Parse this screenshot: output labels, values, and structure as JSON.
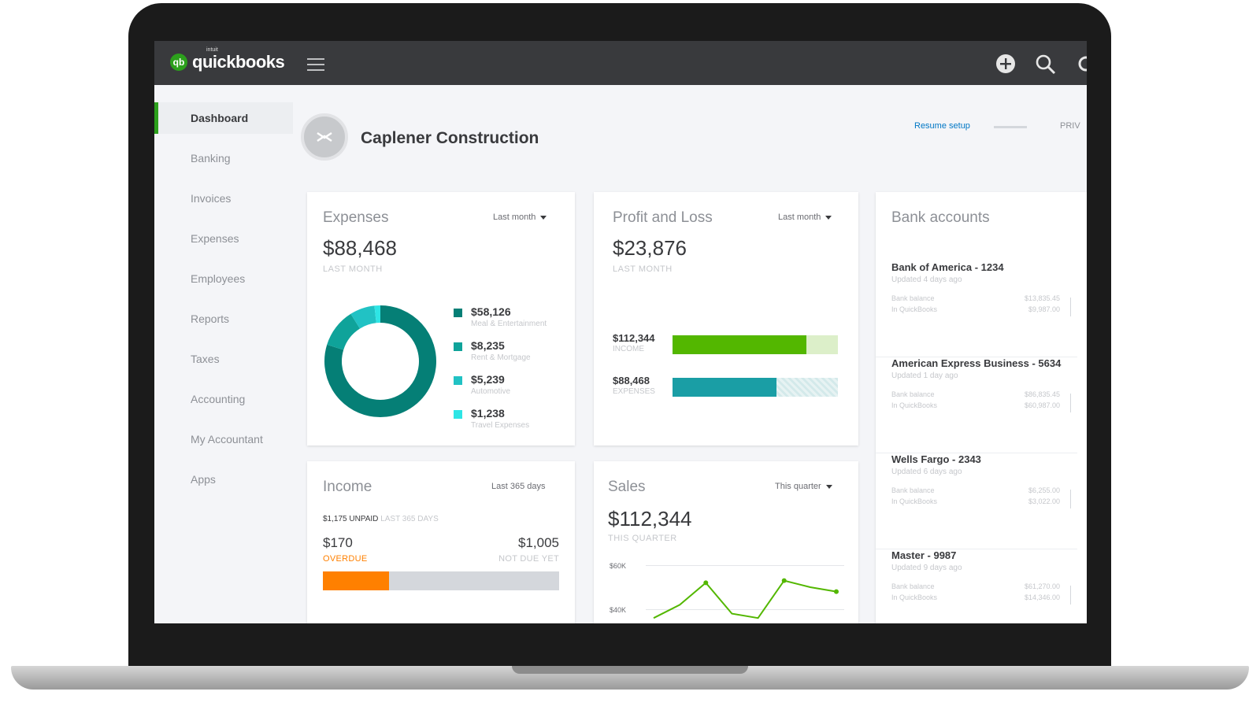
{
  "app": {
    "brand_small": "intuit",
    "brand": "quickbooks",
    "company_name": "Caplener Construction",
    "resume_setup": "Resume setup",
    "privacy": "PRIV"
  },
  "sidebar": {
    "items": [
      {
        "label": "Dashboard",
        "active": true
      },
      {
        "label": "Banking"
      },
      {
        "label": "Invoices"
      },
      {
        "label": "Expenses"
      },
      {
        "label": "Employees"
      },
      {
        "label": "Reports"
      },
      {
        "label": "Taxes"
      },
      {
        "label": "Accounting"
      },
      {
        "label": "My Accountant"
      },
      {
        "label": "Apps"
      }
    ]
  },
  "expenses": {
    "title": "Expenses",
    "filter": "Last month",
    "amount": "$88,468",
    "caption": "LAST MONTH",
    "legend": [
      {
        "amount": "$58,126",
        "label": "Meal & Entertainment",
        "color": "#057f76",
        "value": 58126
      },
      {
        "amount": "$8,235",
        "label": "Rent & Mortgage",
        "color": "#0fa39a",
        "value": 8235
      },
      {
        "amount": "$5,239",
        "label": "Automotive",
        "color": "#21c2c4",
        "value": 5239
      },
      {
        "amount": "$1,238",
        "label": "Travel Expenses",
        "color": "#2ee5e5",
        "value": 1238
      }
    ]
  },
  "profit_loss": {
    "title": "Profit and Loss",
    "filter": "Last month",
    "amount": "$23,876",
    "caption": "LAST MONTH",
    "income_amount": "$112,344",
    "income_label": "INCOME",
    "income_fraction": 0.81,
    "income_color": "#53b700",
    "expenses_amount": "$88,468",
    "expenses_label": "EXPENSES",
    "expenses_fraction": 0.63,
    "expenses_color": "#1a9ea5"
  },
  "bank_accounts": {
    "title": "Bank accounts",
    "accounts": [
      {
        "name": "Bank of America - 1234",
        "updated": "Updated 4 days ago",
        "bank_balance_label": "Bank balance",
        "qb_label": "In QuickBooks",
        "bank_balance": "$13,835.45",
        "qb_balance": "$9,987.00"
      },
      {
        "name": "American Express Business - 5634",
        "updated": "Updated 1 day ago",
        "bank_balance_label": "Bank balance",
        "qb_label": "In QuickBooks",
        "bank_balance": "$86,835.45",
        "qb_balance": "$60,987.00"
      },
      {
        "name": "Wells Fargo - 2343",
        "updated": "Updated 6 days ago",
        "bank_balance_label": "Bank balance",
        "qb_label": "In QuickBooks",
        "bank_balance": "$6,255.00",
        "qb_balance": "$3,022.00"
      },
      {
        "name": "Master - 9987",
        "updated": "Updated 9 days ago",
        "bank_balance_label": "Bank balance",
        "qb_label": "In QuickBooks",
        "bank_balance": "$61,270.00",
        "qb_balance": "$14,346.00"
      }
    ]
  },
  "income": {
    "title": "Income",
    "filter": "Last 365 days",
    "unpaid_amount": "$1,175 UNPAID",
    "unpaid_caption": "LAST 365 DAYS",
    "overdue_amount": "$170",
    "overdue_label": "OVERDUE",
    "not_due_amount": "$1,005",
    "not_due_label": "NOT DUE YET",
    "overdue_fraction": 0.28,
    "overdue_color": "#ff8000"
  },
  "sales": {
    "title": "Sales",
    "filter": "This quarter",
    "amount": "$112,344",
    "caption": "THIS QUARTER",
    "y_ticks": [
      "$60K",
      "$40K"
    ],
    "line_color": "#53b700"
  },
  "chart_data": {
    "type": "line",
    "title": "",
    "y_ticks": [
      "$60K",
      "$40K"
    ],
    "ylim": [
      40000,
      60000
    ],
    "series": [
      {
        "values": [
          36000,
          42000,
          52000,
          38000,
          36000,
          53000,
          50000,
          48000
        ]
      }
    ]
  }
}
